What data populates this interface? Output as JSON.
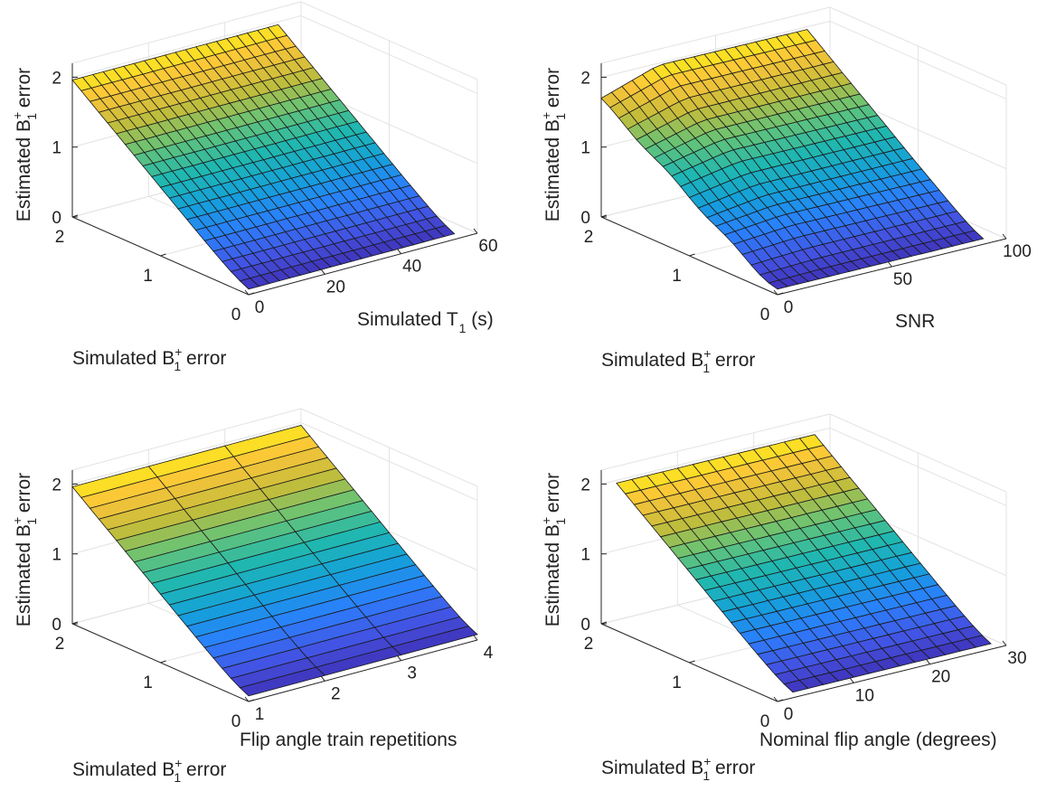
{
  "figure": {
    "description_free": true,
    "colormap": "parula",
    "colormap_stops": [
      "#3e26a8",
      "#4353e2",
      "#2b7ffd",
      "#14a0d9",
      "#1fb7b1",
      "#63c378",
      "#c5bc3a",
      "#fcc539",
      "#f9fb0e"
    ]
  },
  "chart_data": [
    {
      "type": "surface",
      "panel": "top-left",
      "xlabel": {
        "main": "Simulated T",
        "sub": "1",
        "suffix": " (s)"
      },
      "ylabel": {
        "main": "Simulated B",
        "sup": "+",
        "sub": "1",
        "suffix": " error"
      },
      "zlabel": {
        "main": "Estimated B",
        "sup": "+",
        "sub": "1",
        "suffix": " error"
      },
      "xlim": [
        0,
        60
      ],
      "ylim": [
        0,
        2
      ],
      "zlim": [
        0,
        2.2
      ],
      "xticks": [
        "0",
        "20",
        "40",
        "60"
      ],
      "yticks": [
        "0",
        "1",
        "2"
      ],
      "zticks": [
        "0",
        "1",
        "2"
      ],
      "x_grid": [
        0,
        2.7,
        5.4,
        8.1,
        10.8,
        13.5,
        16.2,
        18.9,
        21.6,
        24.3,
        27,
        29.7,
        32.4,
        35.1,
        37.8,
        40.5,
        43.2,
        45.9,
        48.6,
        51.3,
        54
      ],
      "y_grid": [
        0,
        0.1,
        0.2,
        0.3,
        0.4,
        0.5,
        0.6,
        0.7,
        0.8,
        0.9,
        1.0,
        1.1,
        1.2,
        1.3,
        1.4,
        1.5,
        1.6,
        1.7,
        1.8,
        1.9,
        2.0
      ],
      "surface": "estimated error approx equals simulated error, flattening toward 0.1 near zero"
    },
    {
      "type": "surface",
      "panel": "top-right",
      "xlabel": {
        "main": "SNR",
        "sub": "",
        "suffix": ""
      },
      "ylabel": {
        "main": "Simulated B",
        "sup": "+",
        "sub": "1",
        "suffix": " error"
      },
      "zlabel": {
        "main": "Estimated B",
        "sup": "+",
        "sub": "1",
        "suffix": " error"
      },
      "xlim": [
        0,
        100
      ],
      "ylim": [
        0,
        2
      ],
      "zlim": [
        0,
        2.2
      ],
      "xticks": [
        "0",
        "50",
        "100"
      ],
      "yticks": [
        "0",
        "1",
        "2"
      ],
      "zticks": [
        "0",
        "1",
        "2"
      ],
      "x_grid": [
        0,
        4.5,
        9,
        13.5,
        18,
        22.5,
        27,
        31.5,
        36,
        40.5,
        45,
        49.5,
        54,
        58.5,
        63,
        67.5,
        72,
        76.5,
        81,
        85.5,
        90
      ],
      "y_grid": [
        0,
        0.1,
        0.2,
        0.3,
        0.4,
        0.5,
        0.6,
        0.7,
        0.8,
        0.9,
        1.0,
        1.1,
        1.2,
        1.3,
        1.4,
        1.5,
        1.6,
        1.7,
        1.8,
        1.9,
        2.0
      ],
      "surface": "estimated error approx equals simulated error, biased lower at low SNR and high error"
    },
    {
      "type": "surface",
      "panel": "bottom-left",
      "xlabel": {
        "main": "Flip angle train repetitions",
        "sub": "",
        "suffix": ""
      },
      "ylabel": {
        "main": "Simulated B",
        "sup": "+",
        "sub": "1",
        "suffix": " error"
      },
      "zlabel": {
        "main": "Estimated B",
        "sup": "+",
        "sub": "1",
        "suffix": " error"
      },
      "xlim": [
        1,
        4
      ],
      "ylim": [
        0,
        2
      ],
      "zlim": [
        0,
        2.2
      ],
      "xticks": [
        "1",
        "2",
        "3",
        "4"
      ],
      "yticks": [
        "0",
        "1",
        "2"
      ],
      "zticks": [
        "0",
        "1",
        "2"
      ],
      "x_grid": [
        1,
        2,
        3,
        4
      ],
      "y_grid": [
        0,
        0.1,
        0.2,
        0.3,
        0.4,
        0.5,
        0.6,
        0.7,
        0.8,
        0.9,
        1.0,
        1.1,
        1.2,
        1.3,
        1.4,
        1.5,
        1.6,
        1.7,
        1.8,
        1.9,
        2.0
      ],
      "surface": "estimated error approx equals simulated error"
    },
    {
      "type": "surface",
      "panel": "bottom-right",
      "xlabel": {
        "main": "Nominal flip angle (degrees)",
        "sub": "",
        "suffix": ""
      },
      "ylabel": {
        "main": "Simulated B",
        "sup": "+",
        "sub": "1",
        "suffix": " error"
      },
      "zlabel": {
        "main": "Estimated B",
        "sup": "+",
        "sub": "1",
        "suffix": " error"
      },
      "xlim": [
        0,
        30
      ],
      "ylim": [
        0,
        2
      ],
      "zlim": [
        0,
        2.2
      ],
      "xticks": [
        "0",
        "10",
        "20",
        "30"
      ],
      "yticks": [
        "0",
        "1",
        "2"
      ],
      "zticks": [
        "0",
        "1",
        "2"
      ],
      "x_grid": [
        2,
        4,
        6,
        8,
        10,
        12,
        14,
        16,
        18,
        20,
        22,
        24,
        26,
        28
      ],
      "y_grid": [
        0,
        0.1,
        0.2,
        0.3,
        0.4,
        0.5,
        0.6,
        0.7,
        0.8,
        0.9,
        1.0,
        1.1,
        1.2,
        1.3,
        1.4,
        1.5,
        1.6,
        1.7,
        1.8,
        1.9,
        2.0
      ],
      "surface": "estimated error approx equals simulated error"
    }
  ]
}
